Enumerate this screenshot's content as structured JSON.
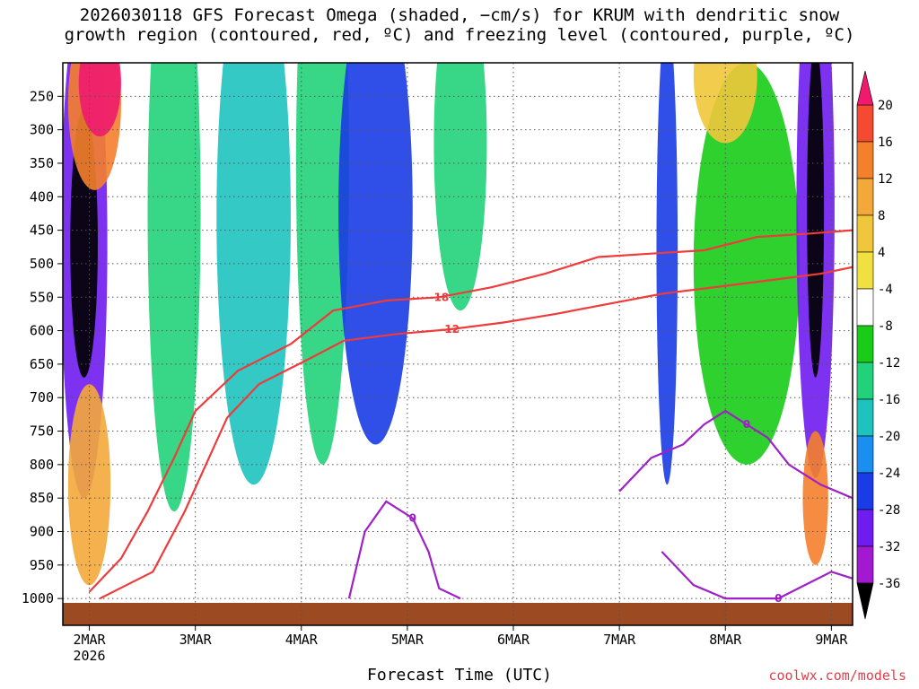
{
  "chart_data": {
    "type": "heatmap",
    "title_line1": "2026030118 GFS Forecast Omega (shaded, −cm/s) for KRUM with dendritic snow",
    "title_line2": "growth region (contoured, red, ºC) and freezing level (contoured, purple, ºC)",
    "xlabel": "Forecast Time (UTC)",
    "ylabel": "",
    "x_ticks": [
      "2MAR",
      "3MAR",
      "4MAR",
      "5MAR",
      "6MAR",
      "7MAR",
      "8MAR",
      "9MAR"
    ],
    "x_tick_sub": "2026",
    "x_range_days": [
      1.75,
      9.2
    ],
    "y_ticks": [
      250,
      300,
      350,
      400,
      450,
      500,
      550,
      600,
      650,
      700,
      750,
      800,
      850,
      900,
      950,
      1000
    ],
    "y_range_hpa": [
      200,
      1040
    ],
    "colorbar_levels": [
      20,
      16,
      12,
      8,
      4,
      -4,
      -8,
      -12,
      -16,
      -20,
      -24,
      -28,
      -32,
      -36
    ],
    "colorbar_colors": [
      "#f0196e",
      "#f44a32",
      "#f5802c",
      "#f3a83a",
      "#f0c63a",
      "#f0e040",
      "#ffffff",
      "#18cc18",
      "#22d27a",
      "#1ec3be",
      "#1b8ff0",
      "#1a3ce6",
      "#6f1cf0",
      "#a319d2",
      "#a9a9a9",
      "#000000"
    ],
    "omega_cells": [
      {
        "t": 1.95,
        "p": 470,
        "dt": 0.22,
        "dp": 380,
        "v": -30
      },
      {
        "t": 1.95,
        "p": 470,
        "dt": 0.13,
        "dp": 200,
        "v": -36
      },
      {
        "t": 2.05,
        "p": 260,
        "dt": 0.25,
        "dp": 130,
        "v": 16
      },
      {
        "t": 2.1,
        "p": 230,
        "dt": 0.2,
        "dp": 80,
        "v": 20
      },
      {
        "t": 2.0,
        "p": 830,
        "dt": 0.2,
        "dp": 150,
        "v": 12
      },
      {
        "t": 2.8,
        "p": 420,
        "dt": 0.25,
        "dp": 450,
        "v": -12
      },
      {
        "t": 3.55,
        "p": 430,
        "dt": 0.35,
        "dp": 400,
        "v": -16
      },
      {
        "t": 4.2,
        "p": 350,
        "dt": 0.25,
        "dp": 450,
        "v": -12
      },
      {
        "t": 4.7,
        "p": 420,
        "dt": 0.35,
        "dp": 350,
        "v": -24
      },
      {
        "t": 5.5,
        "p": 320,
        "dt": 0.25,
        "dp": 250,
        "v": -12
      },
      {
        "t": 7.45,
        "p": 480,
        "dt": 0.1,
        "dp": 350,
        "v": -24
      },
      {
        "t": 8.2,
        "p": 500,
        "dt": 0.5,
        "dp": 300,
        "v": -8
      },
      {
        "t": 8.85,
        "p": 420,
        "dt": 0.18,
        "dp": 400,
        "v": -28
      },
      {
        "t": 8.85,
        "p": 420,
        "dt": 0.08,
        "dp": 250,
        "v": -36
      },
      {
        "t": 8.0,
        "p": 220,
        "dt": 0.3,
        "dp": 100,
        "v": 8
      },
      {
        "t": 8.85,
        "p": 850,
        "dt": 0.12,
        "dp": 100,
        "v": 16
      }
    ],
    "dgz_contours": [
      {
        "label": "-18",
        "points": [
          [
            2.0,
            990
          ],
          [
            2.3,
            940
          ],
          [
            2.55,
            870
          ],
          [
            2.8,
            790
          ],
          [
            3.0,
            720
          ],
          [
            3.4,
            660
          ],
          [
            3.9,
            620
          ],
          [
            4.3,
            570
          ],
          [
            4.8,
            555
          ],
          [
            5.3,
            550
          ],
          [
            5.8,
            535
          ],
          [
            6.3,
            515
          ],
          [
            6.8,
            490
          ],
          [
            7.3,
            485
          ],
          [
            7.8,
            480
          ],
          [
            8.3,
            460
          ],
          [
            8.8,
            455
          ],
          [
            9.2,
            450
          ]
        ]
      },
      {
        "label": "-12",
        "points": [
          [
            2.1,
            1000
          ],
          [
            2.6,
            960
          ],
          [
            2.9,
            870
          ],
          [
            3.3,
            730
          ],
          [
            3.6,
            680
          ],
          [
            4.1,
            640
          ],
          [
            4.4,
            615
          ],
          [
            4.9,
            605
          ],
          [
            5.4,
            598
          ],
          [
            5.9,
            588
          ],
          [
            6.4,
            575
          ],
          [
            6.9,
            560
          ],
          [
            7.4,
            545
          ],
          [
            7.9,
            535
          ],
          [
            8.4,
            525
          ],
          [
            8.9,
            515
          ],
          [
            9.2,
            505
          ]
        ]
      }
    ],
    "freezing_contours": [
      {
        "label": "0",
        "points": [
          [
            4.45,
            1000
          ],
          [
            4.6,
            900
          ],
          [
            4.8,
            855
          ],
          [
            5.05,
            880
          ],
          [
            5.2,
            930
          ],
          [
            5.3,
            985
          ],
          [
            5.5,
            1000
          ]
        ]
      },
      {
        "label": "0",
        "points": [
          [
            7.0,
            840
          ],
          [
            7.3,
            790
          ],
          [
            7.6,
            770
          ],
          [
            7.8,
            740
          ],
          [
            8.0,
            720
          ],
          [
            8.2,
            740
          ],
          [
            8.4,
            760
          ],
          [
            8.6,
            800
          ],
          [
            8.9,
            830
          ],
          [
            9.2,
            850
          ]
        ]
      },
      {
        "label": "0",
        "points": [
          [
            7.4,
            930
          ],
          [
            7.7,
            980
          ],
          [
            8.0,
            1000
          ],
          [
            8.5,
            1000
          ],
          [
            9.0,
            960
          ],
          [
            9.2,
            970
          ]
        ]
      }
    ],
    "colorbar_label_top": "20",
    "credit": "coolwx.com/models"
  }
}
